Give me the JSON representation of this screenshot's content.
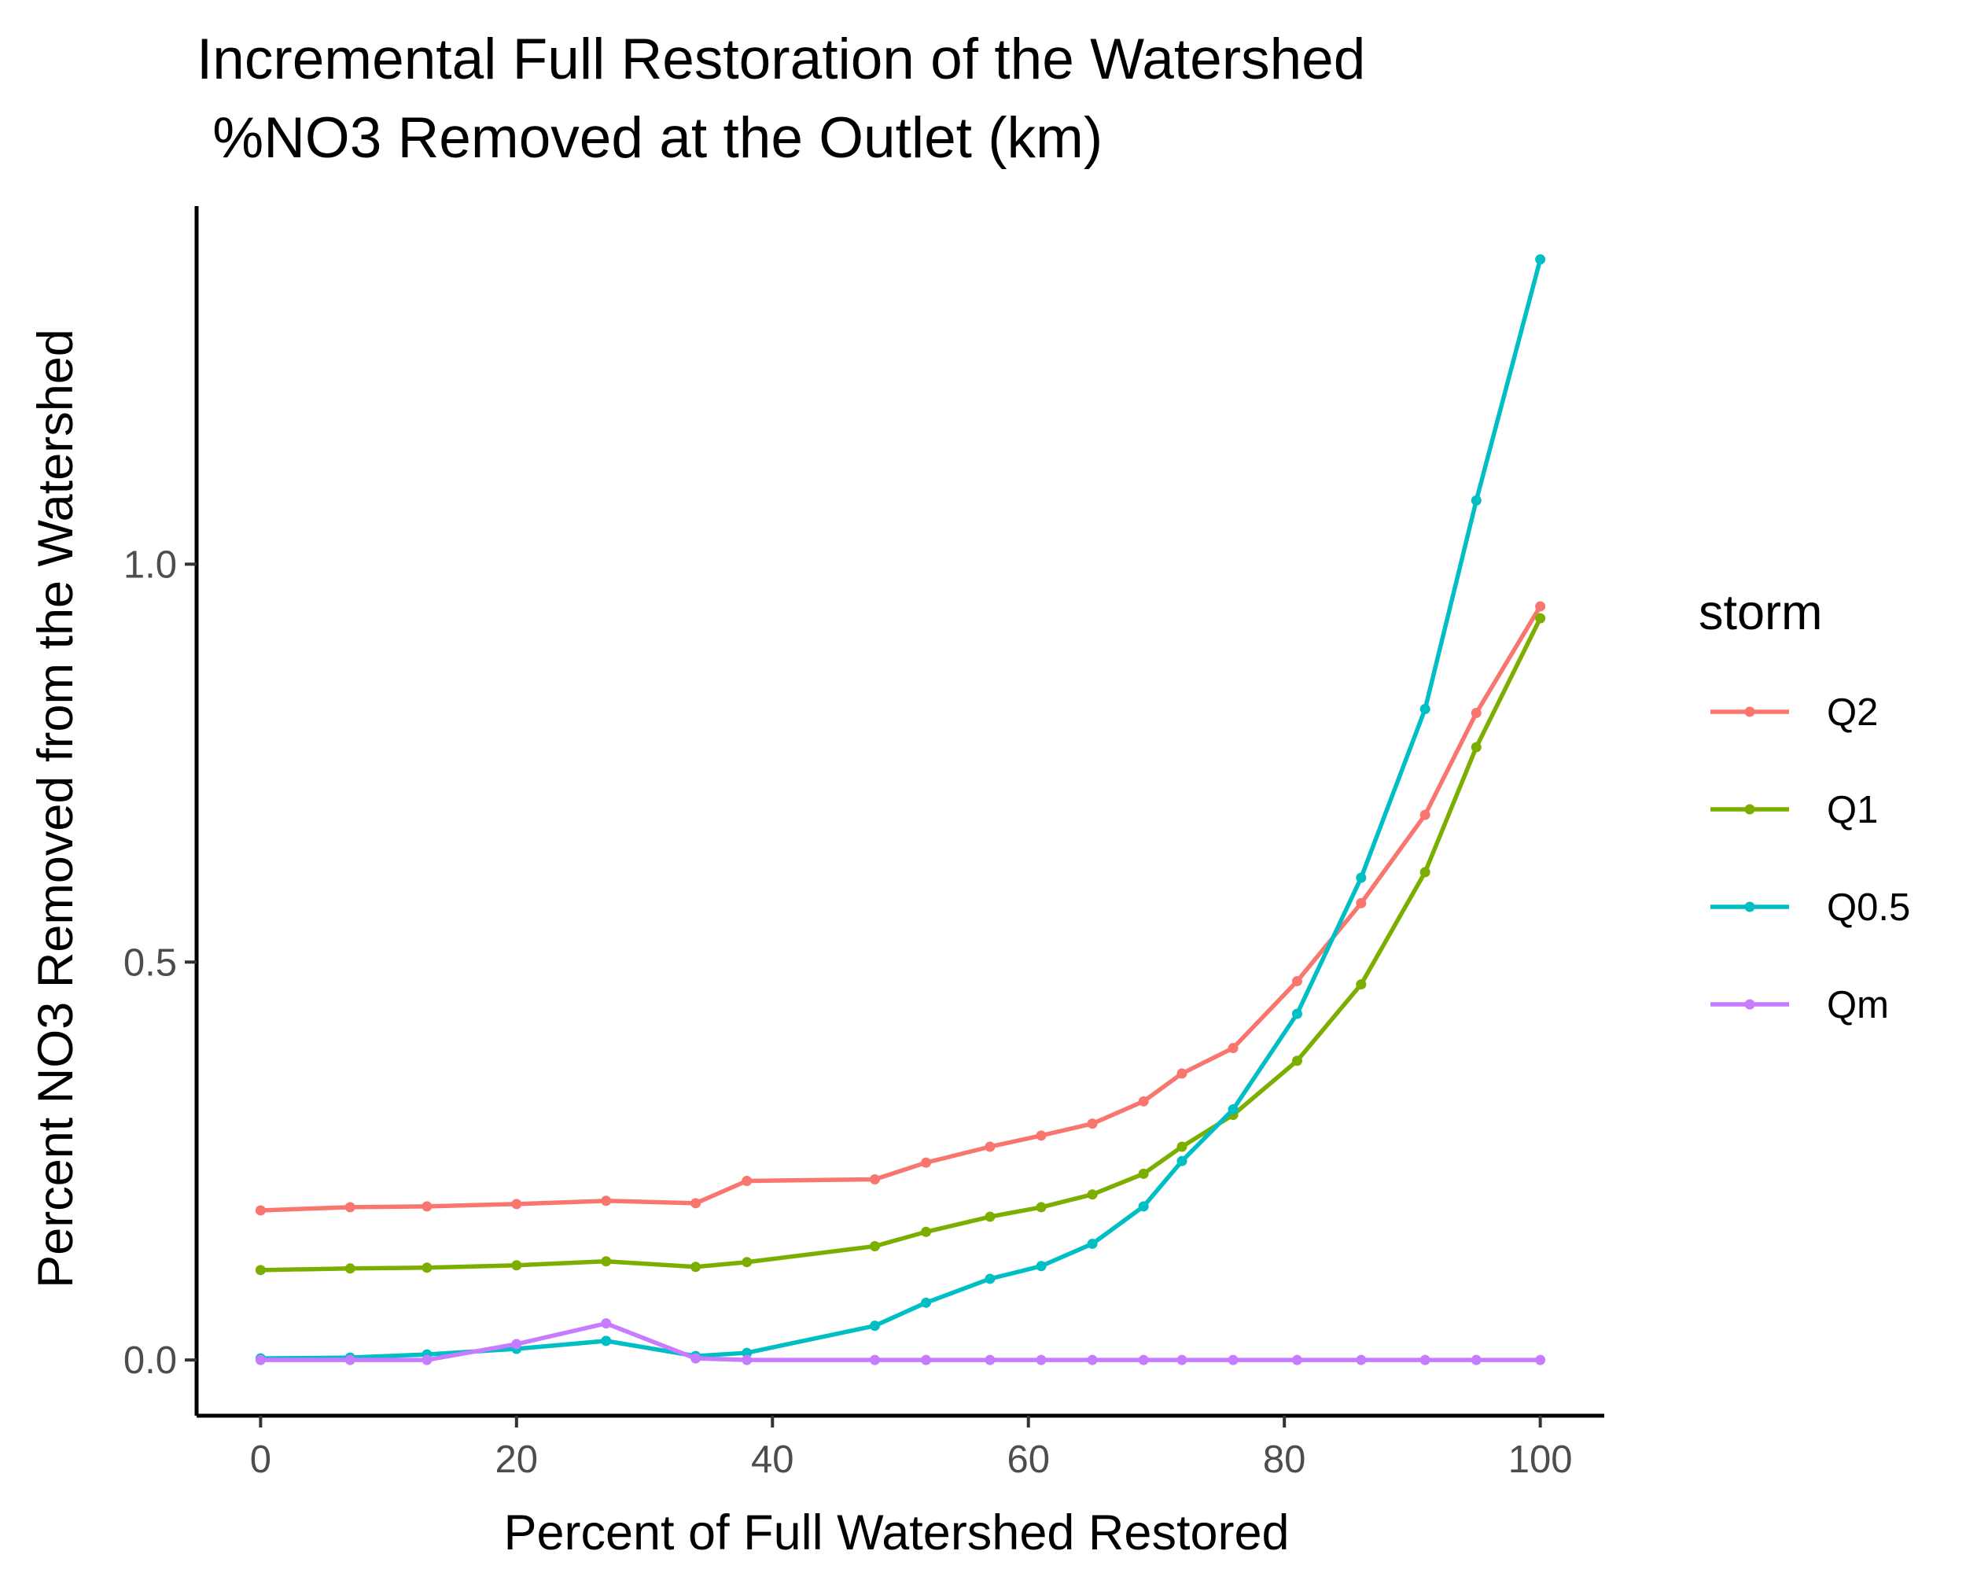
{
  "chart_data": {
    "type": "line",
    "title": "Incremental Full Restoration of the Watershed",
    "subtitle": " %NO3 Removed at the Outlet (km)",
    "xlabel": "Percent of Full Watershed Restored",
    "ylabel": "Percent NO3 Removed from the Watershed",
    "xlim": [
      -5,
      105
    ],
    "ylim": [
      -0.07,
      1.45
    ],
    "x_ticks": [
      "0",
      "20",
      "40",
      "60",
      "80",
      "100"
    ],
    "y_ticks": [
      "0.0",
      "0.5",
      "1.0"
    ],
    "grid": false,
    "legend": {
      "title": "storm",
      "position": "right"
    },
    "x": [
      0,
      7,
      13,
      20,
      27,
      34,
      38,
      48,
      52,
      57,
      61,
      65,
      69,
      72,
      76,
      81,
      86,
      91,
      95,
      100
    ],
    "series": [
      {
        "name": "Q2",
        "color": "#F8766D",
        "values": [
          0.188,
          0.192,
          0.193,
          0.196,
          0.2,
          0.197,
          0.225,
          0.227,
          0.248,
          0.268,
          0.282,
          0.297,
          0.325,
          0.36,
          0.392,
          0.476,
          0.574,
          0.685,
          0.813,
          0.947
        ]
      },
      {
        "name": "Q1",
        "color": "#7CAE00",
        "values": [
          0.113,
          0.115,
          0.116,
          0.119,
          0.124,
          0.117,
          0.123,
          0.143,
          0.161,
          0.18,
          0.192,
          0.208,
          0.234,
          0.268,
          0.308,
          0.376,
          0.472,
          0.613,
          0.77,
          0.932
        ]
      },
      {
        "name": "Q0.5",
        "color": "#00BFC4",
        "values": [
          0.002,
          0.003,
          0.007,
          0.014,
          0.024,
          0.005,
          0.009,
          0.043,
          0.072,
          0.102,
          0.118,
          0.146,
          0.193,
          0.25,
          0.315,
          0.435,
          0.606,
          0.818,
          1.08,
          1.383
        ]
      },
      {
        "name": "Qm",
        "color": "#C77CFF",
        "values": [
          0.0,
          0.0,
          0.0,
          0.02,
          0.046,
          0.002,
          0.0,
          0.0,
          0.0,
          0.0,
          0.0,
          0.0,
          0.0,
          0.0,
          0.0,
          0.0,
          0.0,
          0.0,
          0.0,
          0.0
        ]
      }
    ]
  }
}
